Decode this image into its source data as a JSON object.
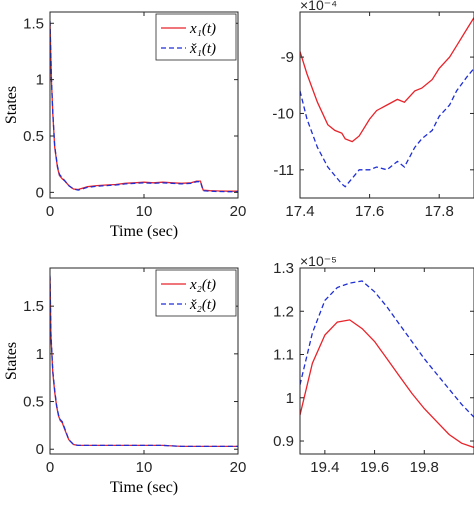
{
  "chart_data": [
    {
      "type": "line",
      "panel": "top-left",
      "xlabel": "Time (sec)",
      "ylabel": "States",
      "xlim": [
        0,
        20
      ],
      "ylim": [
        -0.05,
        1.6
      ],
      "xticks": [
        0,
        10,
        20
      ],
      "yticks": [
        0,
        0.5,
        1,
        1.5
      ],
      "xtick_labels": [
        "0",
        "10",
        "20"
      ],
      "ytick_labels": [
        "0",
        "0.5",
        "1",
        "1.5"
      ],
      "legend": "top-right",
      "series": [
        {
          "name": "x₁(t)",
          "color": "#e8232a",
          "style": "solid",
          "x": [
            0,
            0.15,
            0.3,
            0.5,
            0.8,
            1.0,
            1.3,
            1.6,
            2.0,
            2.5,
            3.0,
            4.0,
            5.0,
            6.0,
            7.0,
            8.0,
            9.0,
            10.0,
            11.0,
            12.0,
            13.0,
            14.0,
            15.0,
            15.6,
            16.0,
            16.3,
            17.0,
            18.0,
            19.0,
            20.0
          ],
          "y": [
            1.5,
            1.0,
            0.7,
            0.4,
            0.22,
            0.15,
            0.12,
            0.1,
            0.06,
            0.03,
            0.025,
            0.05,
            0.06,
            0.065,
            0.07,
            0.08,
            0.085,
            0.09,
            0.085,
            0.09,
            0.085,
            0.08,
            0.085,
            0.1,
            0.1,
            0.02,
            0.015,
            0.012,
            0.01,
            0.01
          ]
        },
        {
          "name": "x̌₁(t)",
          "color": "#1f2fd6",
          "style": "dashed",
          "x": [
            0,
            0.15,
            0.3,
            0.5,
            0.8,
            1.0,
            1.3,
            1.6,
            2.0,
            2.5,
            3.0,
            4.0,
            5.0,
            6.0,
            7.0,
            8.0,
            9.0,
            10.0,
            11.0,
            12.0,
            13.0,
            14.0,
            15.0,
            15.6,
            16.0,
            16.3,
            17.0,
            18.0,
            19.0,
            20.0
          ],
          "y": [
            1.52,
            1.02,
            0.71,
            0.41,
            0.23,
            0.16,
            0.13,
            0.1,
            0.06,
            0.03,
            0.02,
            0.045,
            0.055,
            0.06,
            0.065,
            0.075,
            0.08,
            0.085,
            0.08,
            0.085,
            0.08,
            0.075,
            0.08,
            0.095,
            0.095,
            0.015,
            0.01,
            0.008,
            0.006,
            0.006
          ]
        }
      ]
    },
    {
      "type": "line",
      "panel": "top-right",
      "xlim": [
        17.4,
        17.9
      ],
      "ylim": [
        -11.5,
        -8.2
      ],
      "y_exponent_label": "×10⁻⁴",
      "xticks": [
        17.4,
        17.6,
        17.8
      ],
      "yticks": [
        -11,
        -10,
        -9
      ],
      "xtick_labels": [
        "17.4",
        "17.6",
        "17.8"
      ],
      "ytick_labels": [
        "-11",
        "-10",
        "-9"
      ],
      "series": [
        {
          "name": "x₁(t)",
          "color": "#e8232a",
          "style": "solid",
          "x": [
            17.4,
            17.42,
            17.45,
            17.48,
            17.5,
            17.52,
            17.53,
            17.55,
            17.57,
            17.6,
            17.62,
            17.65,
            17.68,
            17.7,
            17.73,
            17.75,
            17.78,
            17.8,
            17.83,
            17.85,
            17.88,
            17.9
          ],
          "y": [
            -8.9,
            -9.3,
            -9.8,
            -10.2,
            -10.3,
            -10.35,
            -10.45,
            -10.5,
            -10.4,
            -10.1,
            -9.95,
            -9.85,
            -9.75,
            -9.8,
            -9.6,
            -9.55,
            -9.4,
            -9.2,
            -9.0,
            -8.8,
            -8.5,
            -8.3
          ]
        },
        {
          "name": "x̌₁(t)",
          "color": "#1f2fd6",
          "style": "dashed",
          "x": [
            17.4,
            17.42,
            17.45,
            17.48,
            17.5,
            17.52,
            17.53,
            17.55,
            17.57,
            17.6,
            17.62,
            17.65,
            17.68,
            17.7,
            17.73,
            17.75,
            17.78,
            17.8,
            17.83,
            17.85,
            17.88,
            17.9
          ],
          "y": [
            -9.6,
            -10.1,
            -10.6,
            -10.95,
            -11.1,
            -11.25,
            -11.3,
            -11.15,
            -11.0,
            -11.0,
            -10.95,
            -11.0,
            -10.85,
            -10.95,
            -10.6,
            -10.45,
            -10.3,
            -10.05,
            -9.85,
            -9.6,
            -9.35,
            -9.2
          ]
        }
      ]
    },
    {
      "type": "line",
      "panel": "bottom-left",
      "xlabel": "Time (sec)",
      "ylabel": "States",
      "xlim": [
        0,
        20
      ],
      "ylim": [
        -0.05,
        1.9
      ],
      "xticks": [
        0,
        10,
        20
      ],
      "yticks": [
        0,
        0.5,
        1,
        1.5
      ],
      "xtick_labels": [
        "0",
        "10",
        "20"
      ],
      "ytick_labels": [
        "0",
        "0.5",
        "1",
        "1.5"
      ],
      "legend": "top-right",
      "series": [
        {
          "name": "x₂(t)",
          "color": "#e8232a",
          "style": "solid",
          "x": [
            0,
            0.1,
            0.3,
            0.5,
            0.7,
            0.9,
            1.1,
            1.3,
            1.6,
            2.0,
            2.5,
            3.0,
            4.0,
            6.0,
            8.0,
            10.0,
            12.0,
            14.0,
            16.0,
            18.0,
            20.0
          ],
          "y": [
            1.8,
            1.2,
            0.8,
            0.6,
            0.45,
            0.35,
            0.3,
            0.28,
            0.2,
            0.1,
            0.05,
            0.04,
            0.04,
            0.04,
            0.04,
            0.04,
            0.04,
            0.03,
            0.03,
            0.03,
            0.03
          ]
        },
        {
          "name": "x̌₂(t)",
          "color": "#1f2fd6",
          "style": "dashed",
          "x": [
            0,
            0.1,
            0.3,
            0.5,
            0.7,
            0.9,
            1.1,
            1.3,
            1.6,
            2.0,
            2.5,
            3.0,
            4.0,
            6.0,
            8.0,
            10.0,
            12.0,
            14.0,
            16.0,
            18.0,
            20.0
          ],
          "y": [
            1.82,
            1.22,
            0.82,
            0.62,
            0.46,
            0.36,
            0.31,
            0.29,
            0.21,
            0.1,
            0.05,
            0.04,
            0.04,
            0.04,
            0.04,
            0.04,
            0.04,
            0.03,
            0.03,
            0.03,
            0.03
          ]
        }
      ]
    },
    {
      "type": "line",
      "panel": "bottom-right",
      "xlim": [
        19.3,
        20.0
      ],
      "ylim": [
        0.87,
        1.3
      ],
      "y_exponent_label": "×10⁻⁵",
      "xticks": [
        19.4,
        19.6,
        19.8
      ],
      "yticks": [
        0.9,
        1.0,
        1.1,
        1.2,
        1.3
      ],
      "xtick_labels": [
        "19.4",
        "19.6",
        "19.8"
      ],
      "ytick_labels": [
        "0.9",
        "1",
        "1.1",
        "1.2",
        "1.3"
      ],
      "series": [
        {
          "name": "x₂(t)",
          "color": "#e8232a",
          "style": "solid",
          "x": [
            19.3,
            19.35,
            19.4,
            19.45,
            19.5,
            19.55,
            19.6,
            19.65,
            19.7,
            19.75,
            19.8,
            19.85,
            19.9,
            19.95,
            20.0
          ],
          "y": [
            0.96,
            1.08,
            1.145,
            1.175,
            1.18,
            1.16,
            1.13,
            1.09,
            1.05,
            1.01,
            0.975,
            0.945,
            0.915,
            0.895,
            0.885
          ]
        },
        {
          "name": "x̌₂(t)",
          "color": "#1f2fd6",
          "style": "dashed",
          "x": [
            19.3,
            19.35,
            19.4,
            19.45,
            19.5,
            19.55,
            19.6,
            19.65,
            19.7,
            19.75,
            19.8,
            19.85,
            19.9,
            19.95,
            20.0
          ],
          "y": [
            1.03,
            1.15,
            1.225,
            1.255,
            1.265,
            1.27,
            1.245,
            1.21,
            1.17,
            1.13,
            1.09,
            1.055,
            1.02,
            0.985,
            0.955
          ]
        }
      ]
    }
  ]
}
